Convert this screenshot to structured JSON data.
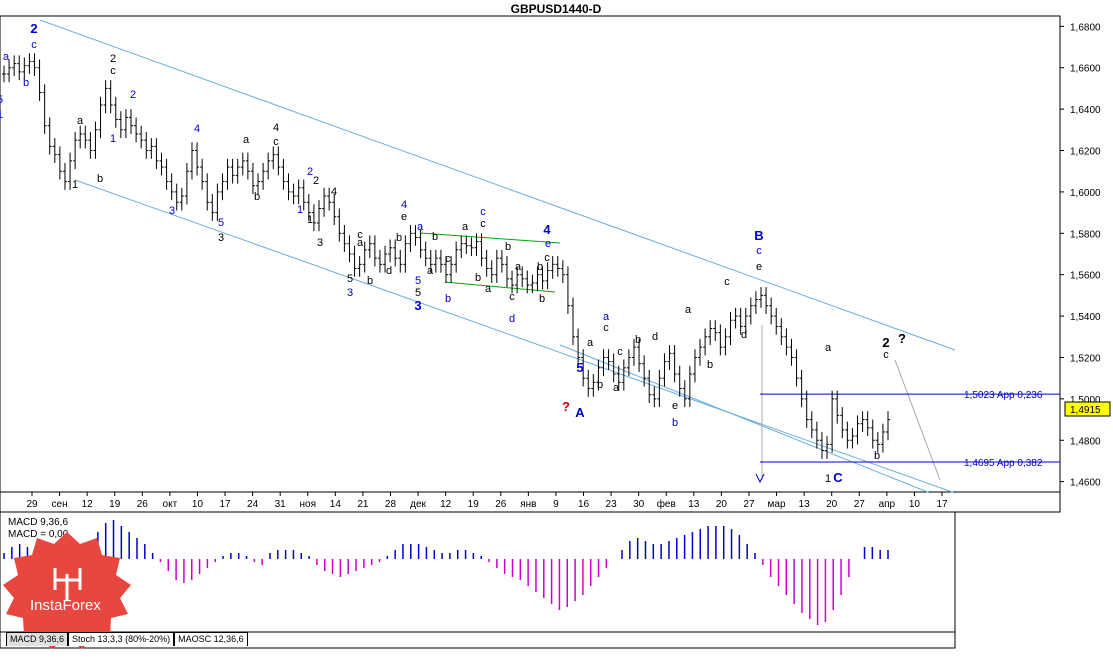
{
  "header": {
    "title": "GBPUSD1440-D"
  },
  "chart_data": {
    "type": "ohlc",
    "symbol": "GBPUSD",
    "timeframe": "D",
    "ylim": [
      1.455,
      1.685
    ],
    "yticks": [
      "1,6800",
      "1,6600",
      "1,6400",
      "1,6200",
      "1,6000",
      "1,5800",
      "1,5600",
      "1,5400",
      "1,5200",
      "1,5000",
      "1,4800",
      "1,4600"
    ],
    "xticks": [
      "29",
      "сен",
      "12",
      "19",
      "26",
      "окт",
      "10",
      "17",
      "24",
      "31",
      "ноя",
      "14",
      "21",
      "28",
      "дек",
      "12",
      "19",
      "26",
      "янв",
      "9",
      "16",
      "23",
      "30",
      "фев",
      "13",
      "20",
      "27",
      "мар",
      "13",
      "20",
      "27",
      "апр",
      "10",
      "17"
    ],
    "current_price": "1,4915",
    "fib_levels": [
      {
        "price": 1.5023,
        "label": "1,5023 App 0,236"
      },
      {
        "price": 1.4695,
        "label": "1,4695 App 0,382"
      }
    ],
    "close_series": [
      1.657,
      1.66,
      1.662,
      1.658,
      1.661,
      1.663,
      1.66,
      1.648,
      1.632,
      1.622,
      1.618,
      1.61,
      1.605,
      1.615,
      1.625,
      1.628,
      1.625,
      1.62,
      1.63,
      1.642,
      1.65,
      1.642,
      1.635,
      1.63,
      1.636,
      1.632,
      1.628,
      1.625,
      1.62,
      1.622,
      1.615,
      1.612,
      1.605,
      1.6,
      1.595,
      1.598,
      1.61,
      1.62,
      1.612,
      1.605,
      1.595,
      1.59,
      1.6,
      1.605,
      1.612,
      1.608,
      1.612,
      1.615,
      1.61,
      1.603,
      1.605,
      1.61,
      1.615,
      1.618,
      1.612,
      1.605,
      1.6,
      1.598,
      1.602,
      1.595,
      1.59,
      1.585,
      1.592,
      1.598,
      1.595,
      1.588,
      1.58,
      1.575,
      1.57,
      1.563,
      1.565,
      1.572,
      1.575,
      1.568,
      1.565,
      1.57,
      1.573,
      1.568,
      1.565,
      1.575,
      1.58,
      1.578,
      1.572,
      1.568,
      1.565,
      1.568,
      1.565,
      1.56,
      1.565,
      1.572,
      1.575,
      1.574,
      1.573,
      1.576,
      1.568,
      1.563,
      1.56,
      1.568,
      1.565,
      1.558,
      1.555,
      1.56,
      1.558,
      1.555,
      1.556,
      1.56,
      1.557,
      1.562,
      1.565,
      1.563,
      1.56,
      1.545,
      1.53,
      1.52,
      1.51,
      1.505,
      1.508,
      1.515,
      1.52,
      1.518,
      1.512,
      1.508,
      1.515,
      1.52,
      1.525,
      1.517,
      1.51,
      1.502,
      1.5,
      1.51,
      1.518,
      1.522,
      1.512,
      1.505,
      1.5,
      1.512,
      1.52,
      1.525,
      1.53,
      1.534,
      1.532,
      1.525,
      1.53,
      1.538,
      1.54,
      1.535,
      1.54,
      1.545,
      1.548,
      1.55,
      1.545,
      1.54,
      1.535,
      1.53,
      1.525,
      1.52,
      1.51,
      1.5,
      1.49,
      1.485,
      1.48,
      1.475,
      1.478,
      1.5,
      1.492,
      1.485,
      1.48,
      1.482,
      1.488,
      1.49,
      1.486,
      1.48,
      1.478,
      1.484,
      1.49
    ],
    "wave_labels": [
      {
        "text": "2",
        "color": "#0000cc",
        "big": true
      },
      {
        "text": "c",
        "color": "#0000cc"
      },
      {
        "text": "a",
        "color": "#0000cc"
      },
      {
        "text": "b",
        "color": "#0000cc"
      },
      {
        "text": "5",
        "color": "#0000cc"
      },
      {
        "text": "1",
        "color": "#0000cc"
      },
      {
        "text": "2",
        "color": "#000"
      },
      {
        "text": "c",
        "color": "#000"
      },
      {
        "text": "2",
        "color": "#0000cc"
      },
      {
        "text": "1",
        "color": "#0000cc"
      },
      {
        "text": "a",
        "color": "#000"
      },
      {
        "text": "b",
        "color": "#000"
      },
      {
        "text": "1",
        "color": "#000"
      },
      {
        "text": "4",
        "color": "#0000cc"
      },
      {
        "text": "3",
        "color": "#0000cc"
      },
      {
        "text": "5",
        "color": "#0000cc"
      },
      {
        "text": "3",
        "color": "#000"
      },
      {
        "text": "a",
        "color": "#000"
      },
      {
        "text": "b",
        "color": "#000"
      },
      {
        "text": "4",
        "color": "#000"
      },
      {
        "text": "c",
        "color": "#000"
      },
      {
        "text": "2",
        "color": "#0000cc"
      },
      {
        "text": "2",
        "color": "#000"
      },
      {
        "text": "1",
        "color": "#0000cc"
      },
      {
        "text": "1",
        "color": "#000"
      },
      {
        "text": "4",
        "color": "#000"
      },
      {
        "text": "3",
        "color": "#000"
      },
      {
        "text": "a",
        "color": "#000"
      },
      {
        "text": "c",
        "color": "#000"
      },
      {
        "text": "b",
        "color": "#000"
      },
      {
        "text": "d",
        "color": "#000"
      },
      {
        "text": "5",
        "color": "#000"
      },
      {
        "text": "3",
        "color": "#0000cc"
      },
      {
        "text": "b",
        "color": "#000"
      },
      {
        "text": "4",
        "color": "#0000cc"
      },
      {
        "text": "e",
        "color": "#000"
      },
      {
        "text": "5",
        "color": "#0000cc"
      },
      {
        "text": "5",
        "color": "#000"
      },
      {
        "text": "3",
        "color": "#0000cc",
        "big": true
      },
      {
        "text": "a",
        "color": "#0000cc"
      },
      {
        "text": "b",
        "color": "#000"
      },
      {
        "text": "a",
        "color": "#000"
      },
      {
        "text": "c",
        "color": "#000"
      },
      {
        "text": "b",
        "color": "#0000cc"
      },
      {
        "text": "a",
        "color": "#000"
      },
      {
        "text": "c",
        "color": "#0000cc"
      },
      {
        "text": "c",
        "color": "#000"
      },
      {
        "text": "b",
        "color": "#000"
      },
      {
        "text": "a",
        "color": "#000"
      },
      {
        "text": "b",
        "color": "#000"
      },
      {
        "text": "c",
        "color": "#000"
      },
      {
        "text": "d",
        "color": "#0000cc"
      },
      {
        "text": "a",
        "color": "#000"
      },
      {
        "text": "b",
        "color": "#000"
      },
      {
        "text": "4",
        "color": "#0000cc",
        "big": true
      },
      {
        "text": "e",
        "color": "#0000cc"
      },
      {
        "text": "c",
        "color": "#000"
      },
      {
        "text": "b",
        "color": "#000"
      },
      {
        "text": "5",
        "color": "#0000cc",
        "big": true
      },
      {
        "text": "A",
        "color": "#0000cc",
        "big": true
      },
      {
        "text": "?",
        "color": "#dd0000",
        "big": true
      },
      {
        "text": "a",
        "color": "#0000cc"
      },
      {
        "text": "c",
        "color": "#000"
      },
      {
        "text": "a",
        "color": "#000"
      },
      {
        "text": "b",
        "color": "#000"
      },
      {
        "text": "a",
        "color": "#000"
      },
      {
        "text": "c",
        "color": "#000"
      },
      {
        "text": "b",
        "color": "#000"
      },
      {
        "text": "d",
        "color": "#000"
      },
      {
        "text": "e",
        "color": "#000"
      },
      {
        "text": "b",
        "color": "#0000cc"
      },
      {
        "text": "a",
        "color": "#000"
      },
      {
        "text": "b",
        "color": "#000"
      },
      {
        "text": "c",
        "color": "#000"
      },
      {
        "text": "d",
        "color": "#000"
      },
      {
        "text": "B",
        "color": "#0000cc",
        "big": true
      },
      {
        "text": "c",
        "color": "#0000cc"
      },
      {
        "text": "e",
        "color": "#000"
      },
      {
        "text": "a",
        "color": "#000"
      },
      {
        "text": "1",
        "color": "#000"
      },
      {
        "text": "C",
        "color": "#0000cc",
        "big": true
      },
      {
        "text": "b",
        "color": "#000"
      },
      {
        "text": "2",
        "color": "#000",
        "big": true
      },
      {
        "text": "c",
        "color": "#000"
      },
      {
        "text": "?",
        "color": "#000",
        "big": true
      }
    ],
    "indicator": {
      "name": "MACD 9,36,6",
      "label1": "MACD 9,36,6",
      "label2": "MACD = 0,00",
      "hist_pos_color": "#0000cc",
      "hist_neg_color": "#cc00cc",
      "hist": [
        0.2,
        0.4,
        0.5,
        0.4,
        0.1,
        0,
        -0.2,
        -0.3,
        -0.2,
        0.1,
        0.3,
        0.5,
        0.9,
        1.2,
        1.3,
        1.1,
        0.9,
        0.7,
        0.5,
        0.2,
        -0.1,
        -0.4,
        -0.7,
        -0.8,
        -0.7,
        -0.5,
        -0.3,
        -0.1,
        0.1,
        0.2,
        0.2,
        0.1,
        -0.1,
        -0.2,
        0.2,
        0.3,
        0.3,
        0.3,
        0.2,
        0.1,
        -0.2,
        -0.4,
        -0.5,
        -0.6,
        -0.5,
        -0.4,
        -0.3,
        -0.2,
        -0.1,
        0.1,
        0.3,
        0.5,
        0.5,
        0.5,
        0.4,
        0.3,
        0.2,
        0.2,
        0.3,
        0.3,
        0.2,
        0.1,
        -0.1,
        -0.3,
        -0.5,
        -0.6,
        -0.7,
        -0.9,
        -1.1,
        -1.3,
        -1.5,
        -1.7,
        -1.6,
        -1.4,
        -1.2,
        -0.9,
        -0.6,
        -0.3,
        0,
        0.3,
        0.6,
        0.7,
        0.6,
        0.5,
        0.5,
        0.6,
        0.7,
        0.8,
        0.9,
        1.0,
        1.1,
        1.1,
        1.1,
        1.0,
        0.8,
        0.5,
        0.2,
        -0.2,
        -0.6,
        -0.9,
        -1.2,
        -1.5,
        -1.8,
        -2.0,
        -2.2,
        -2.1,
        -1.7,
        -1.2,
        -0.6,
        0,
        0.4,
        0.4,
        0.3,
        0.3
      ]
    },
    "tabs": [
      "MACD 9,36,6",
      "Stoch 13,3,3 (80%-20%)",
      "MAOSC 12,36,6"
    ]
  },
  "branding": {
    "logo_text": "InstaForex",
    "logo_color": "#e8473f"
  }
}
